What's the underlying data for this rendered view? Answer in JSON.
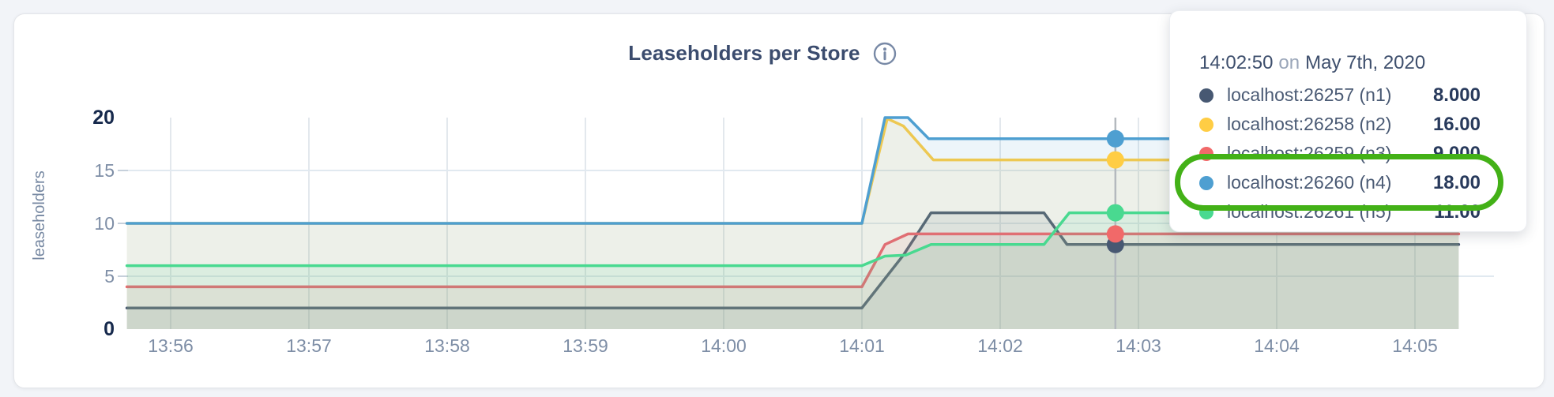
{
  "page": {
    "background": "#f2f4f8"
  },
  "chart_data": {
    "type": "line",
    "title": "Leaseholders per Store",
    "ylabel": "leaseholders",
    "xlabel": "",
    "ylim": [
      0,
      20
    ],
    "grid": true,
    "x_window": [
      "13:55:41",
      "14:05:19"
    ],
    "time_note": "point t values are seconds after 13:56:00",
    "x_ticks": [
      "13:56",
      "13:57",
      "13:58",
      "13:59",
      "14:00",
      "14:01",
      "14:02",
      "14:03",
      "14:04",
      "14:05"
    ],
    "y_ticks": [
      {
        "v": 20,
        "label": "20",
        "bold": true,
        "grid": false
      },
      {
        "v": 15,
        "label": "15",
        "bold": false,
        "grid": true
      },
      {
        "v": 10,
        "label": "10",
        "bold": false,
        "grid": true
      },
      {
        "v": 5,
        "label": "5",
        "bold": false,
        "grid": true
      },
      {
        "v": 0,
        "label": "0",
        "bold": true,
        "grid": false
      }
    ],
    "hover": {
      "t": 410,
      "time_label": "14:02:50",
      "on_word": "on",
      "date_label": "May 7th, 2020"
    },
    "series": [
      {
        "name": "localhost:26257 (n1)",
        "color": "#475872",
        "hover_value": 8,
        "hover_value_label": "8.000",
        "points": [
          [
            -19,
            2
          ],
          [
            300,
            2
          ],
          [
            318,
            7
          ],
          [
            330,
            11
          ],
          [
            379,
            11
          ],
          [
            389,
            8
          ],
          [
            559,
            8
          ]
        ]
      },
      {
        "name": "localhost:26258 (n2)",
        "color": "#FFCD44",
        "hover_value": 16,
        "hover_value_label": "16.00",
        "points": [
          [
            -19,
            10
          ],
          [
            300,
            10
          ],
          [
            311,
            19.9
          ],
          [
            318,
            19.2
          ],
          [
            331,
            16
          ],
          [
            559,
            16
          ]
        ]
      },
      {
        "name": "localhost:26259 (n3)",
        "color": "#F16969",
        "hover_value": 9,
        "hover_value_label": "9.000",
        "points": [
          [
            -19,
            4
          ],
          [
            300,
            4
          ],
          [
            310,
            8
          ],
          [
            320,
            9
          ],
          [
            559,
            9
          ]
        ]
      },
      {
        "name": "localhost:26260 (n4)",
        "color": "#4E9FD1",
        "hover_value": 18,
        "hover_value_label": "18.00",
        "points": [
          [
            -19,
            10
          ],
          [
            300,
            10
          ],
          [
            310,
            20
          ],
          [
            320,
            20
          ],
          [
            329,
            18
          ],
          [
            559,
            18
          ]
        ]
      },
      {
        "name": "localhost:26261 (n5)",
        "color": "#49D990",
        "hover_value": 11,
        "hover_value_label": "11.00",
        "points": [
          [
            -19,
            6
          ],
          [
            300,
            6
          ],
          [
            310,
            6.9
          ],
          [
            319,
            7
          ],
          [
            330,
            8
          ],
          [
            379,
            8
          ],
          [
            390,
            11
          ],
          [
            559,
            11
          ]
        ]
      }
    ],
    "annotation": {
      "shape": "ellipse",
      "color": "#43b117",
      "around": [
        "localhost:26260 (n4)",
        "localhost:26261 (n5)"
      ]
    },
    "legend_position": "tooltip-top-right"
  }
}
